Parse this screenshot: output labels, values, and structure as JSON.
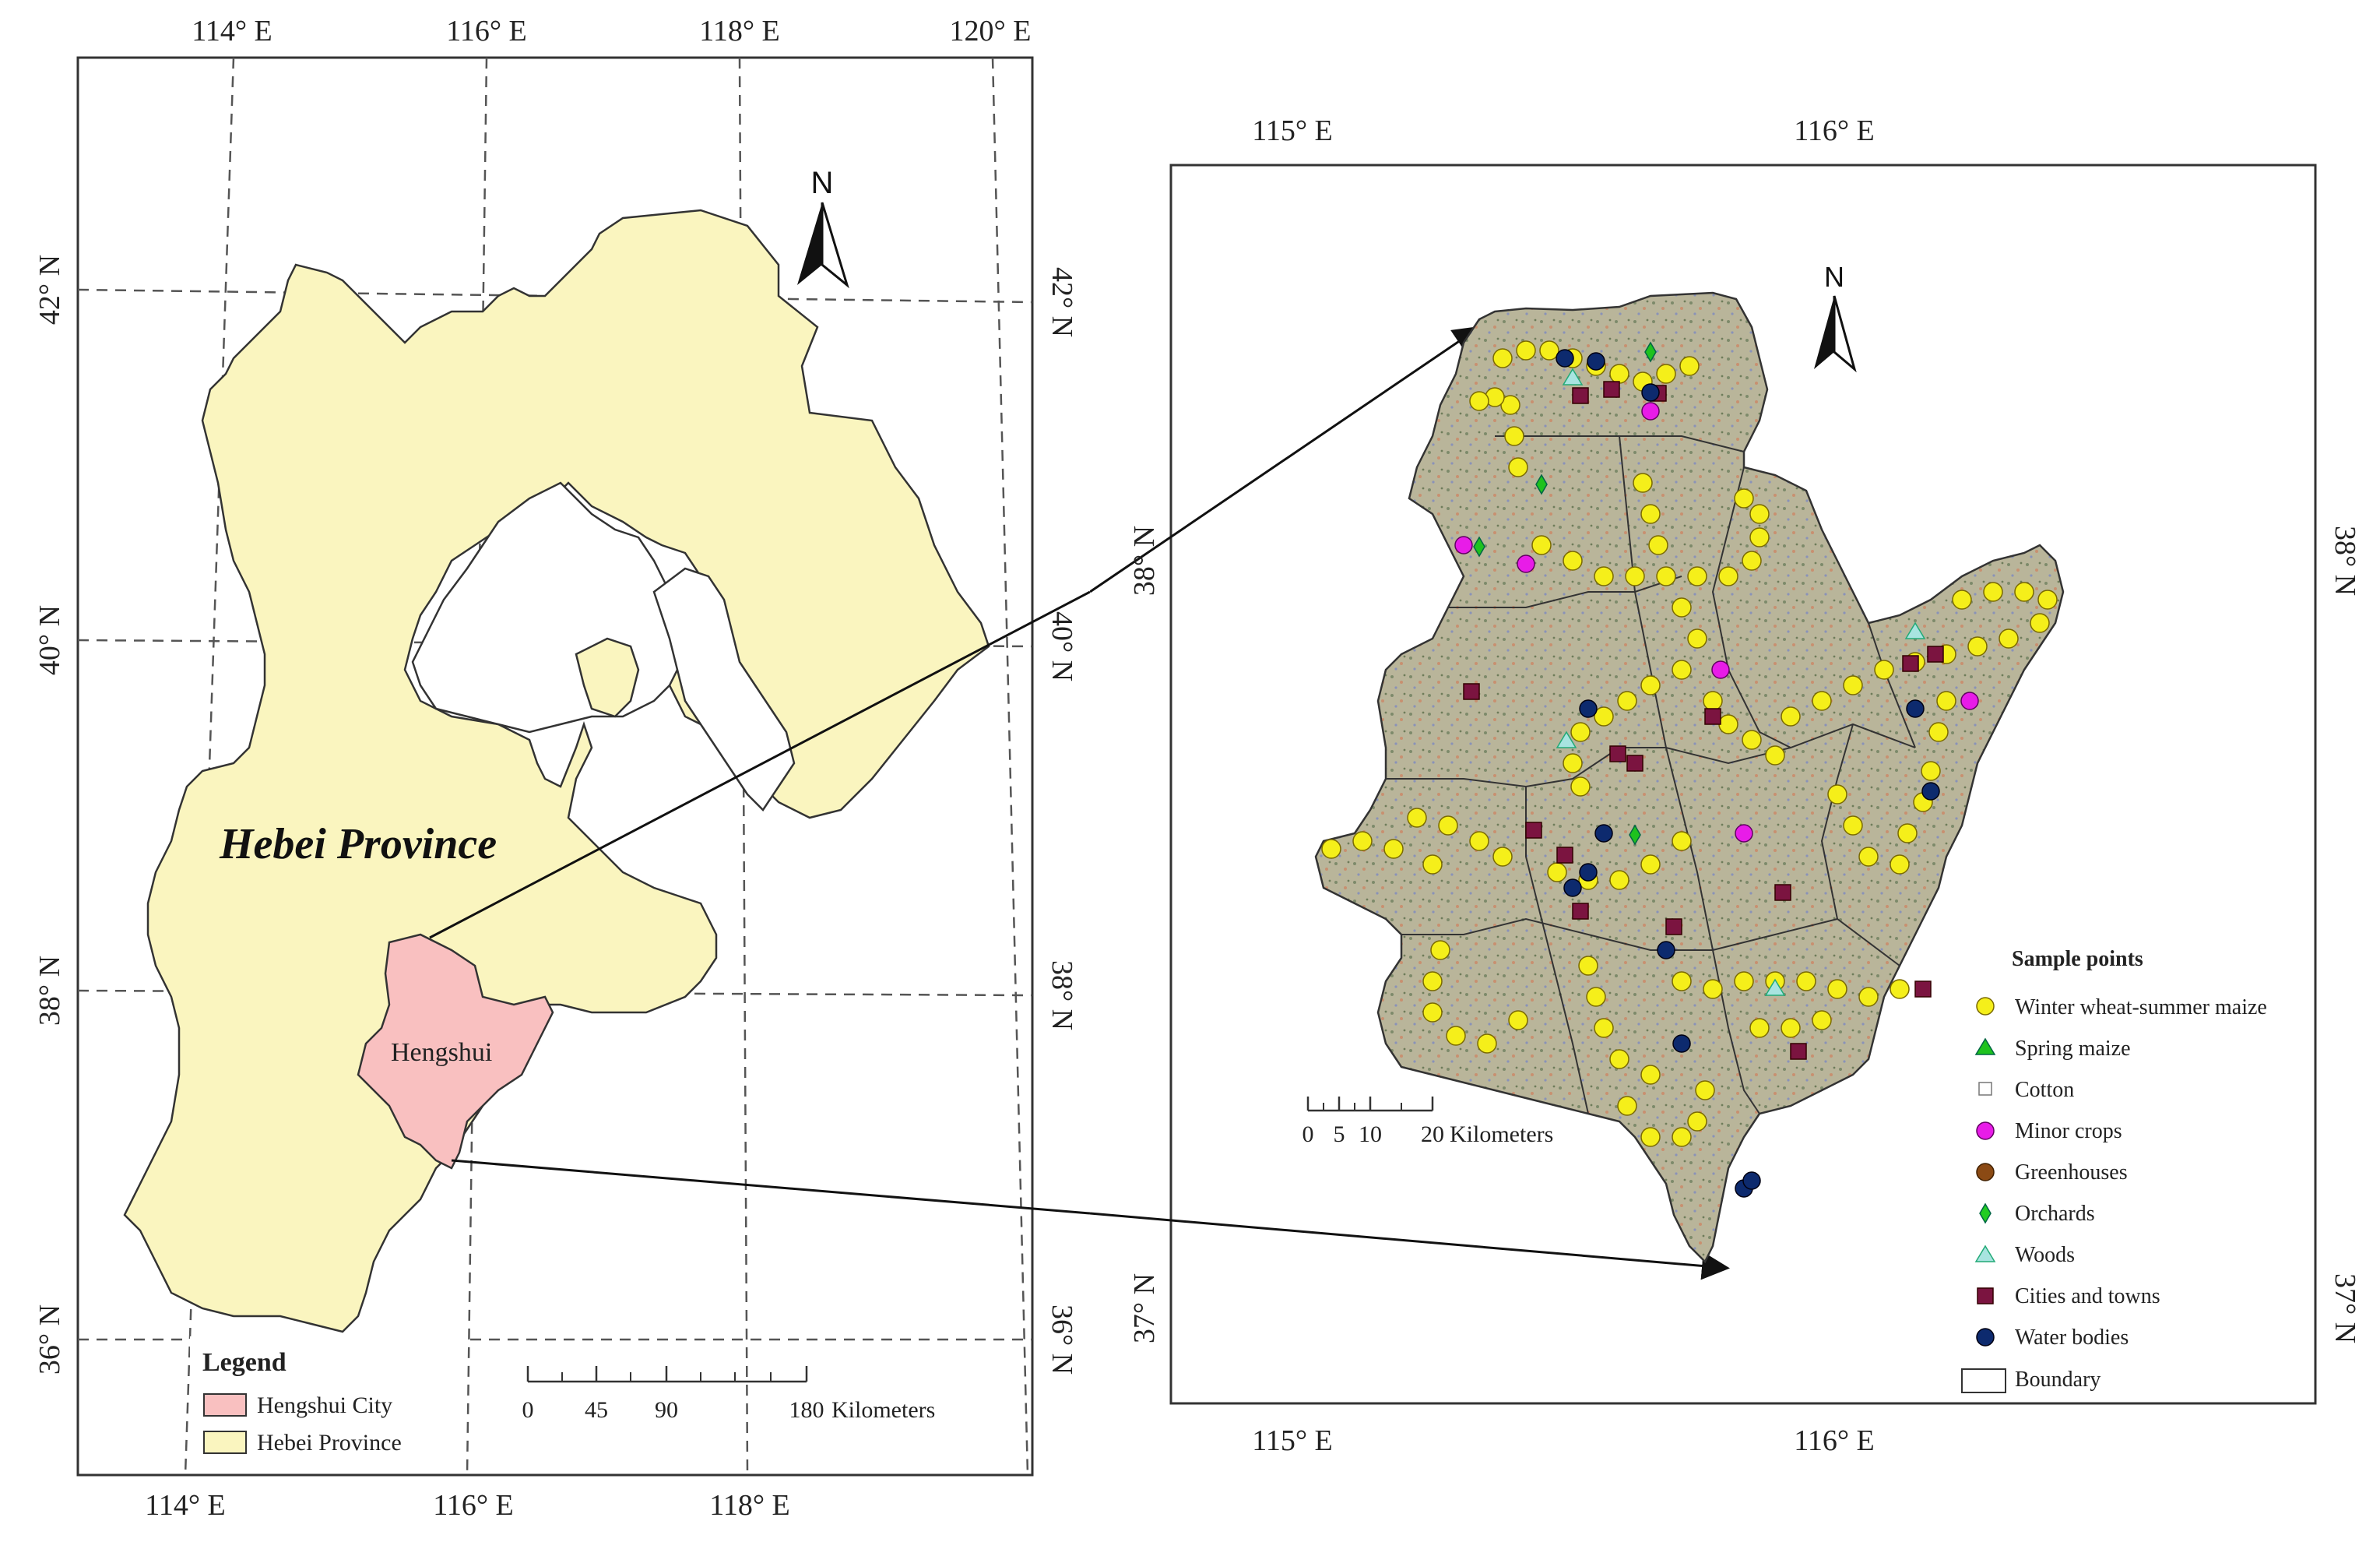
{
  "left_map": {
    "top_labels": [
      "114° E",
      "116° E",
      "118° E",
      "120° E"
    ],
    "bottom_labels": [
      "114° E",
      "116° E",
      "118° E"
    ],
    "left_labels": [
      "42° N",
      "40° N",
      "38° N",
      "36° N"
    ],
    "right_labels": [
      "42° N",
      "40° N",
      "38° N",
      "36° N"
    ],
    "province_label": "Hebei Province",
    "city_label": "Hengshui",
    "north_label": "N",
    "legend": {
      "title": "Legend",
      "items": [
        {
          "label": "Hengshui City",
          "color": "#f9c0c0"
        },
        {
          "label": "Hebei Province",
          "color": "#faf5bf"
        }
      ]
    },
    "scale": {
      "ticks": [
        "0",
        "45",
        "90",
        "180"
      ],
      "unit": "Kilometers"
    }
  },
  "right_map": {
    "top_labels": [
      "115° E",
      "116° E"
    ],
    "bottom_labels": [
      "115° E",
      "116° E"
    ],
    "left_labels": [
      "38° N",
      "37° N"
    ],
    "right_labels": [
      "38° N",
      "37° N"
    ],
    "north_label": "N",
    "scale": {
      "ticks": [
        "0",
        "5",
        "10",
        "20"
      ],
      "unit": "Kilometers"
    },
    "sample_legend": {
      "title": "Sample points",
      "items": [
        {
          "label": "Winter wheat-summer maize",
          "symbol": "circle",
          "color": "#f5ef1a"
        },
        {
          "label": "Spring maize",
          "symbol": "triangle",
          "color": "#1ec21e"
        },
        {
          "label": "Cotton",
          "symbol": "square-outline",
          "color": "#ffffff"
        },
        {
          "label": "Minor crops",
          "symbol": "circle",
          "color": "#e81ce8"
        },
        {
          "label": "Greenhouses",
          "symbol": "circle",
          "color": "#8b4a14"
        },
        {
          "label": "Orchards",
          "symbol": "diamond",
          "color": "#22cc22"
        },
        {
          "label": "Woods",
          "symbol": "triangle",
          "color": "#a8e4e0"
        },
        {
          "label": "Cities and towns",
          "symbol": "square",
          "color": "#7b1440"
        },
        {
          "label": "Water bodies",
          "symbol": "circle",
          "color": "#0d2a6e"
        },
        {
          "label": "Boundary",
          "symbol": "rect-outline",
          "color": "#ffffff"
        }
      ]
    }
  }
}
